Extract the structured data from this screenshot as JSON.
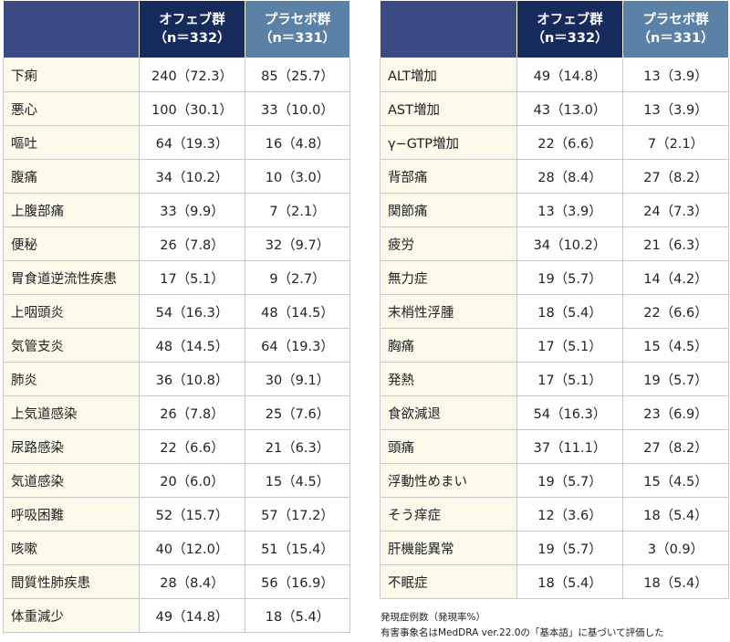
{
  "header": {
    "corner": "",
    "ofe_line1": "オフェブ群",
    "ofe_line2": "（n＝332）",
    "pla_line1": "プラセボ群",
    "pla_line2": "（n＝331）"
  },
  "left_rows": [
    {
      "event": "下痢",
      "ofe": "240（72.3）",
      "pla": "85（25.7）"
    },
    {
      "event": "悪心",
      "ofe": "100（30.1）",
      "pla": "33（10.0）"
    },
    {
      "event": "嘔吐",
      "ofe": "64（19.3）",
      "pla": "16（4.8）"
    },
    {
      "event": "腹痛",
      "ofe": "34（10.2）",
      "pla": "10（3.0）"
    },
    {
      "event": "上腹部痛",
      "ofe": "33（9.9）",
      "pla": "7（2.1）"
    },
    {
      "event": "便秘",
      "ofe": "26（7.8）",
      "pla": "32（9.7）"
    },
    {
      "event": "胃食道逆流性疾患",
      "ofe": "17（5.1）",
      "pla": "9（2.7）"
    },
    {
      "event": "上咽頭炎",
      "ofe": "54（16.3）",
      "pla": "48（14.5）"
    },
    {
      "event": "気管支炎",
      "ofe": "48（14.5）",
      "pla": "64（19.3）"
    },
    {
      "event": "肺炎",
      "ofe": "36（10.8）",
      "pla": "30（9.1）"
    },
    {
      "event": "上気道感染",
      "ofe": "26（7.8）",
      "pla": "25（7.6）"
    },
    {
      "event": "尿路感染",
      "ofe": "22（6.6）",
      "pla": "21（6.3）"
    },
    {
      "event": "気道感染",
      "ofe": "20（6.0）",
      "pla": "15（4.5）"
    },
    {
      "event": "呼吸困難",
      "ofe": "52（15.7）",
      "pla": "57（17.2）"
    },
    {
      "event": "咳嗽",
      "ofe": "40（12.0）",
      "pla": "51（15.4）"
    },
    {
      "event": "間質性肺疾患",
      "ofe": "28（8.4）",
      "pla": "56（16.9）"
    },
    {
      "event": "体重減少",
      "ofe": "49（14.8）",
      "pla": "18（5.4）"
    }
  ],
  "right_rows": [
    {
      "event": "ALT増加",
      "ofe": "49（14.8）",
      "pla": "13（3.9）"
    },
    {
      "event": "AST増加",
      "ofe": "43（13.0）",
      "pla": "13（3.9）"
    },
    {
      "event": "γ−GTP増加",
      "ofe": "22（6.6）",
      "pla": "7（2.1）"
    },
    {
      "event": "背部痛",
      "ofe": "28（8.4）",
      "pla": "27（8.2）"
    },
    {
      "event": "関節痛",
      "ofe": "13（3.9）",
      "pla": "24（7.3）"
    },
    {
      "event": "疲労",
      "ofe": "34（10.2）",
      "pla": "21（6.3）"
    },
    {
      "event": "無力症",
      "ofe": "19（5.7）",
      "pla": "14（4.2）"
    },
    {
      "event": "末梢性浮腫",
      "ofe": "18（5.4）",
      "pla": "22（6.6）"
    },
    {
      "event": "胸痛",
      "ofe": "17（5.1）",
      "pla": "15（4.5）"
    },
    {
      "event": "発熱",
      "ofe": "17（5.1）",
      "pla": "19（5.7）"
    },
    {
      "event": "食欲減退",
      "ofe": "54（16.3）",
      "pla": "23（6.9）"
    },
    {
      "event": "頭痛",
      "ofe": "37（11.1）",
      "pla": "27（8.2）"
    },
    {
      "event": "浮動性めまい",
      "ofe": "19（5.7）",
      "pla": "15（4.5）"
    },
    {
      "event": "そう痒症",
      "ofe": "12（3.6）",
      "pla": "18（5.4）"
    },
    {
      "event": "肝機能異常",
      "ofe": "19（5.7）",
      "pla": "3（0.9）"
    },
    {
      "event": "不眠症",
      "ofe": "18（5.4）",
      "pla": "18（5.4）"
    }
  ],
  "footnote": {
    "line1": "発現症例数（発現率%）",
    "line2": "有害事象名はMedDRA ver.22.0の「基本語」に基づいて評価した"
  },
  "colors": {
    "corner_header": "#3b4a85",
    "ofev_header": "#172a5c",
    "placebo_header": "#5b82a6",
    "event_cell": "#fbfaea",
    "grid_line": "#c9c9c9"
  }
}
